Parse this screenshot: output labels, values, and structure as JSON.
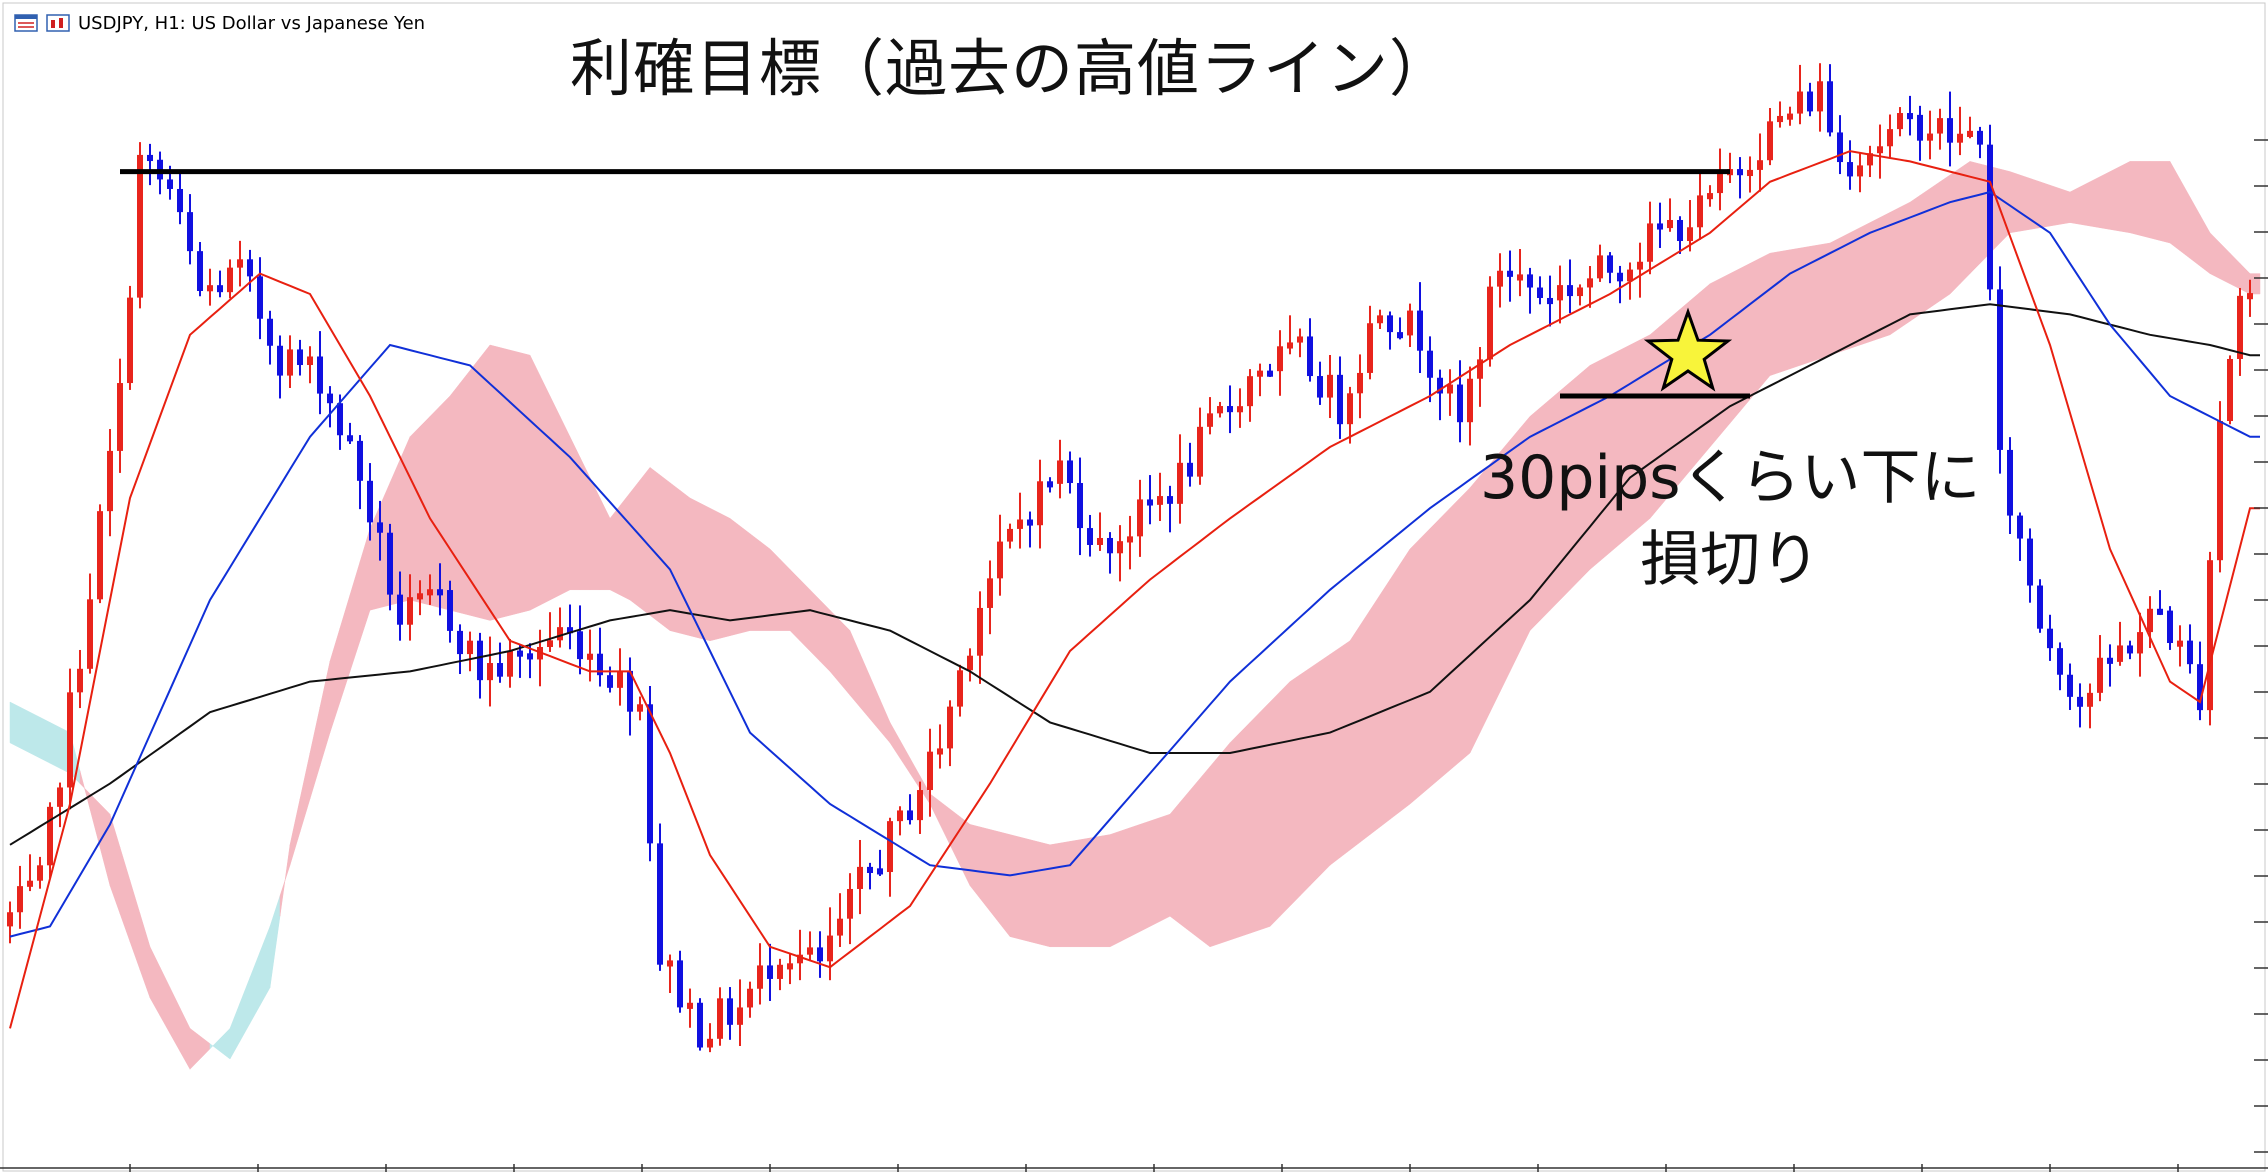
{
  "window": {
    "title": "USDJPY, H1:  US Dollar vs Japanese Yen",
    "icons": [
      "chart-list-icon",
      "chart-properties-icon"
    ]
  },
  "annotations": {
    "take_profit": "利確目標（過去の高値ライン）",
    "stop_loss_line1": "30pipsくらい下に",
    "stop_loss_line2": "損切り",
    "entry_marker_icon": "star-icon"
  },
  "colors": {
    "bull_candle": "#e8241c",
    "bear_candle": "#1010e0",
    "ma_fast": "#e82010",
    "ma_mid": "#1030d8",
    "ma_slow": "#111111",
    "cloud_bear": "#f4b8c0",
    "cloud_bull": "#bde8ea",
    "star_fill": "#f8f43a",
    "line": "#000000"
  },
  "chart_data": {
    "type": "candlestick",
    "symbol": "USDJPY",
    "timeframe": "H1",
    "price_anchors": [
      [
        0,
        0.18
      ],
      [
        4,
        0.22
      ],
      [
        8,
        0.45
      ],
      [
        12,
        0.7
      ],
      [
        14,
        0.93
      ],
      [
        17,
        0.9
      ],
      [
        20,
        0.8
      ],
      [
        24,
        0.82
      ],
      [
        28,
        0.74
      ],
      [
        32,
        0.72
      ],
      [
        36,
        0.62
      ],
      [
        40,
        0.48
      ],
      [
        44,
        0.5
      ],
      [
        48,
        0.43
      ],
      [
        52,
        0.44
      ],
      [
        56,
        0.47
      ],
      [
        58,
        0.46
      ],
      [
        61,
        0.43
      ],
      [
        64,
        0.4
      ],
      [
        66,
        0.15
      ],
      [
        70,
        0.08
      ],
      [
        74,
        0.1
      ],
      [
        78,
        0.16
      ],
      [
        82,
        0.14
      ],
      [
        86,
        0.22
      ],
      [
        90,
        0.28
      ],
      [
        94,
        0.36
      ],
      [
        98,
        0.5
      ],
      [
        102,
        0.58
      ],
      [
        106,
        0.63
      ],
      [
        110,
        0.55
      ],
      [
        114,
        0.58
      ],
      [
        118,
        0.62
      ],
      [
        122,
        0.68
      ],
      [
        126,
        0.73
      ],
      [
        130,
        0.74
      ],
      [
        134,
        0.69
      ],
      [
        138,
        0.79
      ],
      [
        142,
        0.76
      ],
      [
        146,
        0.67
      ],
      [
        150,
        0.83
      ],
      [
        154,
        0.8
      ],
      [
        158,
        0.81
      ],
      [
        162,
        0.83
      ],
      [
        166,
        0.86
      ],
      [
        170,
        0.88
      ],
      [
        174,
        0.93
      ],
      [
        178,
        0.97
      ],
      [
        182,
        1.0
      ],
      [
        184,
        0.93
      ],
      [
        188,
        0.95
      ],
      [
        192,
        0.97
      ],
      [
        196,
        0.95
      ],
      [
        198,
        0.96
      ],
      [
        200,
        0.63
      ],
      [
        204,
        0.48
      ],
      [
        208,
        0.4
      ],
      [
        212,
        0.45
      ],
      [
        216,
        0.49
      ],
      [
        220,
        0.41
      ],
      [
        222,
        0.68
      ],
      [
        224,
        0.8
      ]
    ],
    "ma_fast_anchors": [
      [
        0,
        0.08
      ],
      [
        6,
        0.3
      ],
      [
        12,
        0.6
      ],
      [
        18,
        0.76
      ],
      [
        25,
        0.82
      ],
      [
        30,
        0.8
      ],
      [
        36,
        0.7
      ],
      [
        42,
        0.58
      ],
      [
        50,
        0.46
      ],
      [
        58,
        0.43
      ],
      [
        62,
        0.43
      ],
      [
        66,
        0.35
      ],
      [
        70,
        0.25
      ],
      [
        76,
        0.16
      ],
      [
        82,
        0.14
      ],
      [
        90,
        0.2
      ],
      [
        98,
        0.32
      ],
      [
        106,
        0.45
      ],
      [
        114,
        0.52
      ],
      [
        122,
        0.58
      ],
      [
        132,
        0.65
      ],
      [
        142,
        0.7
      ],
      [
        150,
        0.75
      ],
      [
        160,
        0.8
      ],
      [
        170,
        0.86
      ],
      [
        176,
        0.91
      ],
      [
        184,
        0.94
      ],
      [
        190,
        0.93
      ],
      [
        198,
        0.91
      ],
      [
        204,
        0.75
      ],
      [
        210,
        0.55
      ],
      [
        216,
        0.42
      ],
      [
        219,
        0.4
      ],
      [
        224,
        0.59
      ]
    ],
    "ma_mid_anchors": [
      [
        0,
        0.17
      ],
      [
        4,
        0.18
      ],
      [
        10,
        0.28
      ],
      [
        20,
        0.5
      ],
      [
        30,
        0.66
      ],
      [
        38,
        0.75
      ],
      [
        46,
        0.73
      ],
      [
        56,
        0.64
      ],
      [
        66,
        0.53
      ],
      [
        74,
        0.37
      ],
      [
        82,
        0.3
      ],
      [
        92,
        0.24
      ],
      [
        100,
        0.23
      ],
      [
        106,
        0.24
      ],
      [
        114,
        0.33
      ],
      [
        122,
        0.42
      ],
      [
        132,
        0.51
      ],
      [
        142,
        0.59
      ],
      [
        152,
        0.66
      ],
      [
        160,
        0.7
      ],
      [
        170,
        0.76
      ],
      [
        178,
        0.82
      ],
      [
        186,
        0.86
      ],
      [
        194,
        0.89
      ],
      [
        198,
        0.9
      ],
      [
        204,
        0.86
      ],
      [
        210,
        0.77
      ],
      [
        216,
        0.7
      ],
      [
        220,
        0.68
      ],
      [
        224,
        0.66
      ]
    ],
    "ma_slow_anchors": [
      [
        0,
        0.26
      ],
      [
        10,
        0.32
      ],
      [
        20,
        0.39
      ],
      [
        30,
        0.42
      ],
      [
        40,
        0.43
      ],
      [
        50,
        0.45
      ],
      [
        60,
        0.48
      ],
      [
        66,
        0.49
      ],
      [
        72,
        0.48
      ],
      [
        80,
        0.49
      ],
      [
        88,
        0.47
      ],
      [
        96,
        0.43
      ],
      [
        104,
        0.38
      ],
      [
        114,
        0.35
      ],
      [
        122,
        0.35
      ],
      [
        132,
        0.37
      ],
      [
        142,
        0.41
      ],
      [
        152,
        0.5
      ],
      [
        162,
        0.62
      ],
      [
        172,
        0.69
      ],
      [
        182,
        0.74
      ],
      [
        190,
        0.78
      ],
      [
        198,
        0.79
      ],
      [
        206,
        0.78
      ],
      [
        214,
        0.76
      ],
      [
        220,
        0.75
      ],
      [
        224,
        0.74
      ]
    ],
    "cloud_top_anchors": [
      [
        0,
        0.36
      ],
      [
        6,
        0.33
      ],
      [
        10,
        0.29
      ],
      [
        14,
        0.16
      ],
      [
        18,
        0.08
      ],
      [
        22,
        0.05
      ],
      [
        26,
        0.12
      ],
      [
        28,
        0.26
      ],
      [
        32,
        0.44
      ],
      [
        36,
        0.57
      ],
      [
        40,
        0.66
      ],
      [
        44,
        0.7
      ],
      [
        48,
        0.75
      ],
      [
        52,
        0.74
      ],
      [
        56,
        0.66
      ],
      [
        60,
        0.58
      ],
      [
        64,
        0.63
      ],
      [
        68,
        0.6
      ],
      [
        72,
        0.58
      ],
      [
        76,
        0.55
      ],
      [
        80,
        0.51
      ],
      [
        84,
        0.47
      ],
      [
        88,
        0.38
      ],
      [
        92,
        0.31
      ],
      [
        96,
        0.28
      ],
      [
        100,
        0.27
      ],
      [
        104,
        0.26
      ],
      [
        110,
        0.27
      ],
      [
        116,
        0.29
      ],
      [
        122,
        0.36
      ],
      [
        128,
        0.42
      ],
      [
        134,
        0.46
      ],
      [
        140,
        0.55
      ],
      [
        146,
        0.61
      ],
      [
        152,
        0.68
      ],
      [
        158,
        0.73
      ],
      [
        164,
        0.76
      ],
      [
        170,
        0.81
      ],
      [
        176,
        0.84
      ],
      [
        182,
        0.85
      ],
      [
        186,
        0.87
      ],
      [
        190,
        0.89
      ],
      [
        196,
        0.93
      ],
      [
        200,
        0.92
      ],
      [
        206,
        0.9
      ],
      [
        212,
        0.93
      ],
      [
        216,
        0.93
      ],
      [
        220,
        0.86
      ],
      [
        224,
        0.82
      ]
    ],
    "cloud_bottom_anchors": [
      [
        0,
        0.4
      ],
      [
        6,
        0.37
      ],
      [
        10,
        0.22
      ],
      [
        14,
        0.11
      ],
      [
        18,
        0.04
      ],
      [
        22,
        0.08
      ],
      [
        26,
        0.18
      ],
      [
        28,
        0.24
      ],
      [
        32,
        0.37
      ],
      [
        36,
        0.49
      ],
      [
        40,
        0.5
      ],
      [
        44,
        0.49
      ],
      [
        48,
        0.48
      ],
      [
        52,
        0.49
      ],
      [
        56,
        0.51
      ],
      [
        60,
        0.51
      ],
      [
        62,
        0.5
      ],
      [
        66,
        0.47
      ],
      [
        70,
        0.46
      ],
      [
        74,
        0.47
      ],
      [
        78,
        0.47
      ],
      [
        82,
        0.43
      ],
      [
        88,
        0.36
      ],
      [
        92,
        0.3
      ],
      [
        96,
        0.22
      ],
      [
        100,
        0.17
      ],
      [
        104,
        0.16
      ],
      [
        110,
        0.16
      ],
      [
        116,
        0.19
      ],
      [
        120,
        0.16
      ],
      [
        126,
        0.18
      ],
      [
        132,
        0.24
      ],
      [
        140,
        0.3
      ],
      [
        146,
        0.35
      ],
      [
        152,
        0.47
      ],
      [
        158,
        0.53
      ],
      [
        164,
        0.58
      ],
      [
        170,
        0.65
      ],
      [
        176,
        0.72
      ],
      [
        182,
        0.74
      ],
      [
        188,
        0.76
      ],
      [
        194,
        0.8
      ],
      [
        200,
        0.86
      ],
      [
        206,
        0.87
      ],
      [
        212,
        0.86
      ],
      [
        216,
        0.85
      ],
      [
        220,
        0.82
      ],
      [
        224,
        0.8
      ]
    ],
    "candle_count": 225,
    "take_profit_level": 0.92,
    "stop_loss_level": 0.7,
    "entry_index": 160,
    "entry_level": 0.8,
    "take_profit_range": [
      11,
      172
    ],
    "stop_loss_range": [
      155,
      174
    ]
  }
}
